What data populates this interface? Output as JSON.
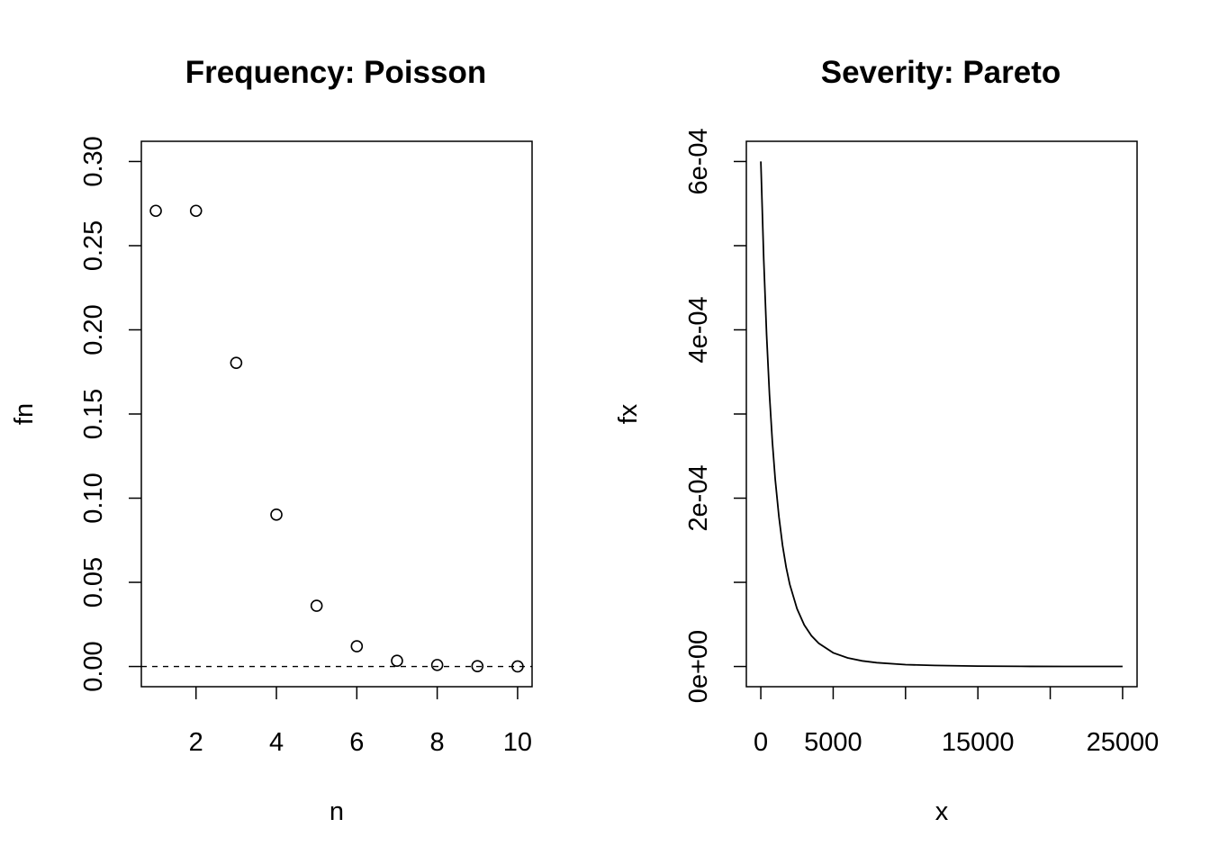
{
  "chart_data": [
    {
      "type": "scatter",
      "title": "Frequency: Poisson",
      "xlabel": "n",
      "ylabel": "fn",
      "xlim": [
        0.64,
        10.36
      ],
      "ylim": [
        -0.012,
        0.312
      ],
      "x_ticks": [
        2,
        4,
        6,
        8,
        10
      ],
      "x_tick_labels": [
        "2",
        "4",
        "6",
        "8",
        "10"
      ],
      "y_ticks": [
        0.0,
        0.05,
        0.1,
        0.15,
        0.2,
        0.25,
        0.3
      ],
      "y_tick_labels": [
        "0.00",
        "0.05",
        "0.10",
        "0.15",
        "0.20",
        "0.25",
        "0.30"
      ],
      "marker": "open-circle",
      "reference_line": {
        "y": 0,
        "style": "dashed"
      },
      "x": [
        1,
        2,
        3,
        4,
        5,
        6,
        7,
        8,
        9,
        10
      ],
      "y": [
        0.2707,
        0.2707,
        0.1804,
        0.0902,
        0.0361,
        0.012,
        0.0034,
        0.0009,
        0.0002,
        4e-05
      ],
      "grid": false,
      "legend": "none"
    },
    {
      "type": "line",
      "title": "Severity: Pareto",
      "xlabel": "x",
      "ylabel": "fx",
      "xlim": [
        -1000,
        26000
      ],
      "ylim": [
        -2.4e-05,
        0.000624
      ],
      "x_ticks": [
        0,
        5000,
        10000,
        15000,
        20000,
        25000
      ],
      "x_tick_labels": [
        "0",
        "5000",
        "",
        "15000",
        "",
        "25000"
      ],
      "y_ticks": [
        0,
        0.0001,
        0.0002,
        0.0003,
        0.0004,
        0.0005,
        0.0006
      ],
      "y_tick_labels": [
        "0e+00",
        "",
        "2e-04",
        "",
        "4e-04",
        "",
        "6e-04"
      ],
      "series": [
        {
          "x": [
            0,
            200,
            400,
            600,
            800,
            1000,
            1250,
            1500,
            1750,
            2000,
            2500,
            3000,
            3500,
            4000,
            5000,
            6000,
            7000,
            8000,
            10000,
            12000,
            15000,
            18000,
            21000,
            25000
          ],
          "y": [
            0.0006,
            0.000484,
            0.000394,
            0.000323,
            0.000267,
            0.000222,
            0.000178,
            0.000144,
            0.000118,
            9.77e-05,
            6.86e-05,
            4.94e-05,
            3.65e-05,
            2.75e-05,
            1.63e-05,
            1.02e-05,
            6.7e-06,
            4.5e-06,
            2.2e-06,
            1.2e-06,
            5e-07,
            2e-07,
            1e-07,
            1e-07
          ]
        }
      ],
      "grid": false,
      "legend": "none"
    }
  ]
}
